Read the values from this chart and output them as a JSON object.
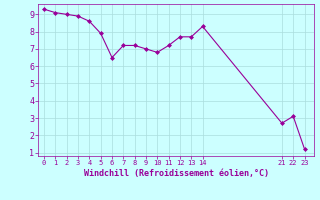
{
  "x": [
    0,
    1,
    2,
    3,
    4,
    5,
    6,
    7,
    8,
    9,
    10,
    11,
    12,
    13,
    14,
    21,
    22,
    23
  ],
  "y": [
    9.3,
    9.1,
    9.0,
    8.9,
    8.6,
    7.9,
    6.5,
    7.2,
    7.2,
    7.0,
    6.8,
    7.2,
    7.7,
    7.7,
    8.3,
    2.7,
    3.1,
    1.2
  ],
  "line_color": "#990099",
  "marker": "D",
  "marker_size": 2,
  "bg_color": "#ccffff",
  "grid_color": "#aadddd",
  "xlabel": "Windchill (Refroidissement éolien,°C)",
  "xlabel_color": "#990099",
  "tick_color": "#990099",
  "ylim_min": 0.8,
  "ylim_max": 9.6,
  "yticks": [
    1,
    2,
    3,
    4,
    5,
    6,
    7,
    8,
    9
  ],
  "xlim_min": -0.5,
  "xlim_max": 23.8,
  "xticks": [
    0,
    1,
    2,
    3,
    4,
    5,
    6,
    7,
    8,
    9,
    10,
    11,
    12,
    13,
    14,
    21,
    22,
    23
  ],
  "xtick_labels": [
    "0",
    "1",
    "2",
    "3",
    "4",
    "5",
    "6",
    "7",
    "8",
    "9",
    "10",
    "11",
    "12",
    "13",
    "14",
    "21",
    "22",
    "23"
  ]
}
